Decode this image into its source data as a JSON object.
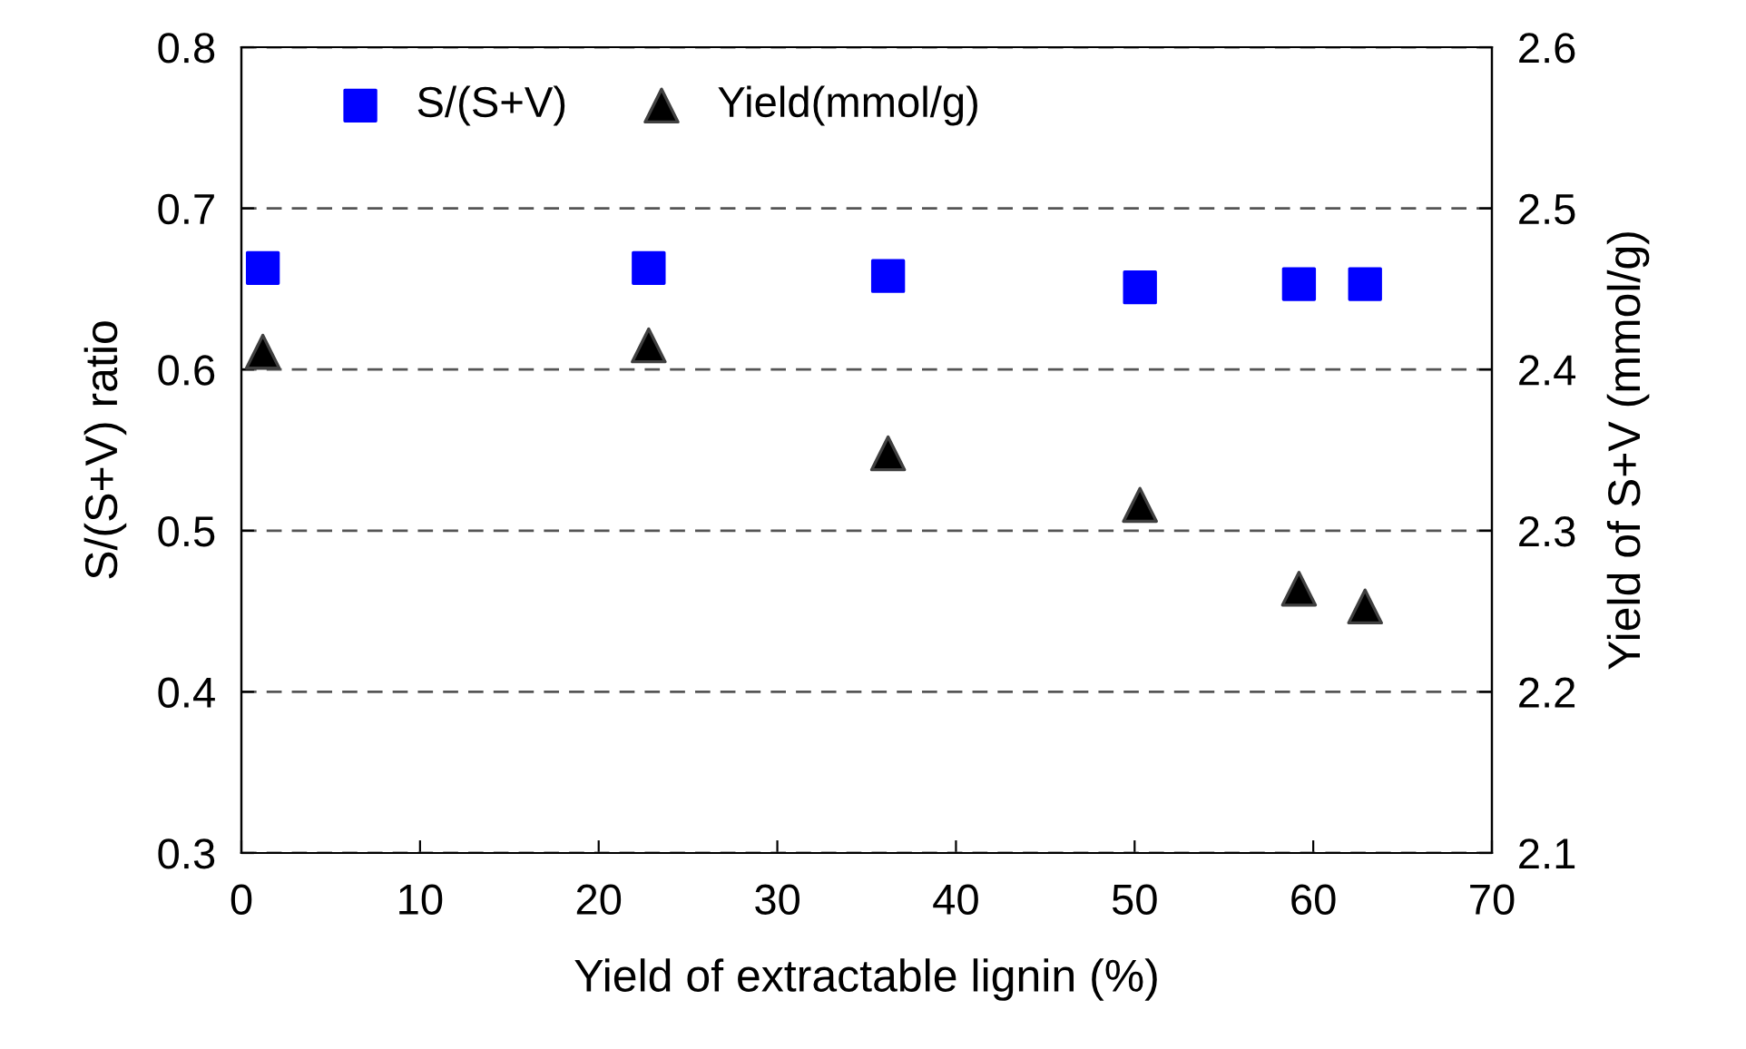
{
  "chart_data": {
    "type": "scatter",
    "xlabel": "Yield of extractable lignin (%)",
    "ylabel": "S/(S+V) ratio",
    "y2label": "Yield of S+V (mmol/g)",
    "x": [
      1.2,
      22.8,
      36.2,
      50.3,
      59.2,
      62.9
    ],
    "series": [
      {
        "name": "S/(S+V)",
        "color": "#0000ff",
        "marker": "square",
        "values": [
          0.663,
          0.663,
          0.658,
          0.651,
          0.653,
          0.653
        ]
      },
      {
        "name": "Yield(mmol/g)",
        "color": "#000000",
        "marker": "triangle",
        "axis": "y2",
        "values": [
          2.411,
          2.415,
          2.348,
          2.316,
          2.264,
          2.253
        ]
      }
    ],
    "xlim": [
      0,
      70
    ],
    "xticks": [
      0,
      10,
      20,
      30,
      40,
      50,
      60,
      70
    ],
    "ylim": [
      0.3,
      0.8
    ],
    "yticks": [
      0.3,
      0.4,
      0.5,
      0.6,
      0.7,
      0.8
    ],
    "y2lim": [
      2.1,
      2.6
    ],
    "y2ticks": [
      2.1,
      2.2,
      2.3,
      2.4,
      2.5,
      2.6
    ],
    "grid": "y",
    "legend": "top left"
  }
}
